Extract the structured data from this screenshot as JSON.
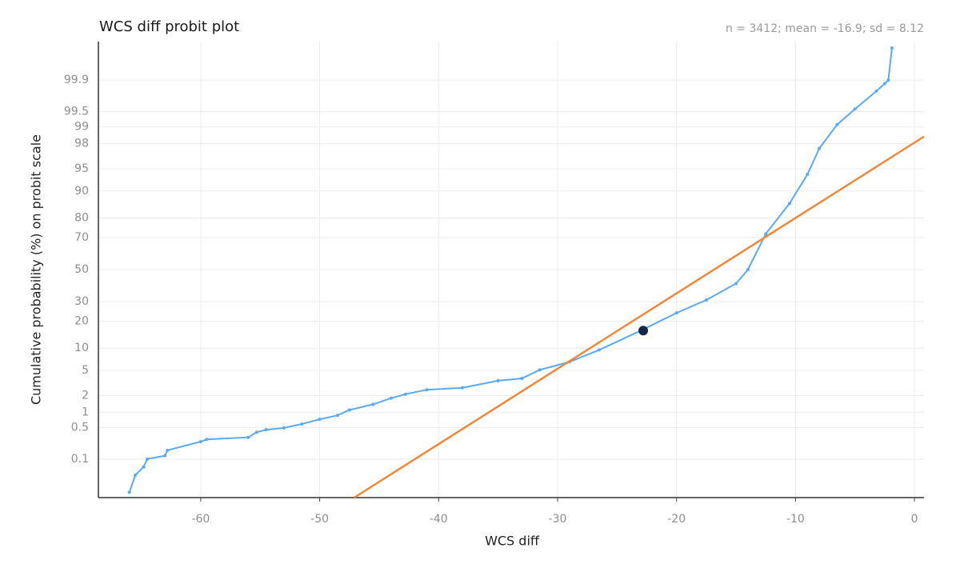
{
  "chart_data": {
    "type": "probit",
    "title": "WCS diff probit plot",
    "subtitle": "n = 3412; mean = -16.9; sd = 8.12",
    "x_label": "WCS diff",
    "y_label": "Cumulative probability (%) on probit scale",
    "xlim": [
      -68.6,
      0.8
    ],
    "xticks": [
      -60,
      -50,
      -40,
      -30,
      -20,
      -10,
      0
    ],
    "ylim": [
      0.01,
      99.99
    ],
    "yticks": [
      0.1,
      0.5,
      1,
      2,
      5,
      10,
      20,
      30,
      50,
      70,
      80,
      90,
      95,
      98,
      99,
      99.5,
      99.9
    ],
    "grid": true,
    "series": [
      {
        "color": "#5aaaf0",
        "x": [
          -66,
          -65.5,
          -64.8,
          -64.5,
          -63,
          -62.8,
          -60,
          -59.5,
          -56,
          -55.3,
          -54.5,
          -53,
          -51.5,
          -50,
          -48.5,
          -47.5,
          -45.5,
          -44,
          -42.8,
          -41,
          -38,
          -35,
          -33,
          -31.5,
          -29,
          -26.5,
          -23,
          -20,
          -17.5,
          -15,
          -14,
          -12.5,
          -10.5,
          -9,
          -8,
          -6.5,
          -5,
          -3.2,
          -2.5,
          -2.2,
          -1.9
        ],
        "values": [
          0.014,
          0.04,
          0.064,
          0.1,
          0.12,
          0.16,
          0.25,
          0.28,
          0.31,
          0.4,
          0.45,
          0.49,
          0.59,
          0.73,
          0.87,
          1.1,
          1.4,
          1.8,
          2.1,
          2.5,
          2.7,
          3.5,
          3.8,
          5.1,
          6.6,
          9.5,
          16,
          24,
          31,
          41,
          50,
          72,
          86,
          94,
          97.6,
          99.1,
          99.56,
          99.82,
          99.88,
          99.9,
          99.985
        ]
      },
      {
        "color": "#f0883a",
        "x": [
          -47.1,
          0.8
        ],
        "values": [
          0.01,
          98.5
        ]
      }
    ],
    "highlight": {
      "x": -22.8,
      "value": 16,
      "color": "#13294b"
    }
  }
}
